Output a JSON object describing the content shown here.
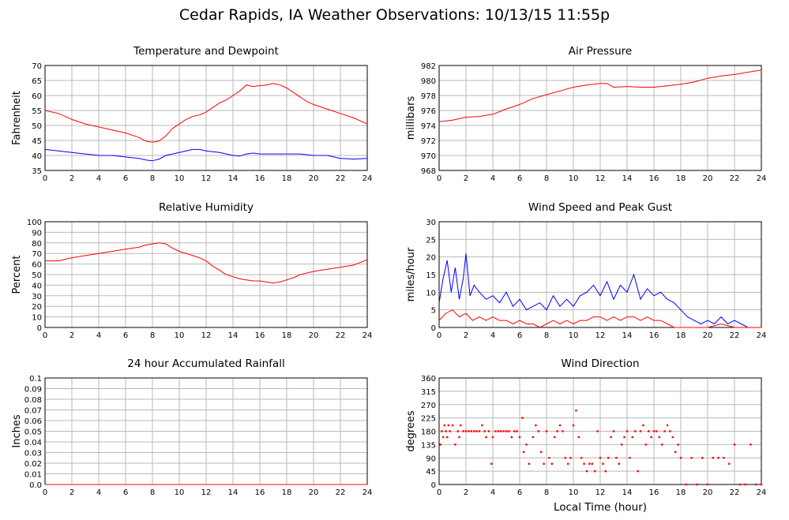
{
  "page": {
    "title": "Cedar Rapids, IA Weather Observations: 10/13/15 11:55p"
  },
  "chart_data": [
    {
      "id": "temp",
      "type": "line",
      "title": "Temperature and Dewpoint",
      "ylabel": "Fahrenheit",
      "xlabel": "",
      "xlim": [
        0,
        24
      ],
      "xticks": [
        0,
        2,
        4,
        6,
        8,
        10,
        12,
        14,
        16,
        18,
        20,
        22,
        24
      ],
      "ylim": [
        35,
        70
      ],
      "yticks": [
        35,
        40,
        45,
        50,
        55,
        60,
        65,
        70
      ],
      "grid": true,
      "series": [
        {
          "color": "#ff0000",
          "x": [
            0,
            1,
            2,
            3,
            4,
            5,
            6,
            7,
            7.5,
            8,
            8.5,
            9,
            9.5,
            10,
            10.5,
            11,
            11.5,
            12,
            12.5,
            13,
            13.5,
            14,
            14.5,
            15,
            15.5,
            16,
            16.5,
            17,
            17.5,
            18,
            18.5,
            19,
            19.5,
            20,
            21,
            22,
            23,
            24
          ],
          "y": [
            55,
            54,
            52,
            50.5,
            49.5,
            48.5,
            47.5,
            46,
            44.8,
            44.4,
            44.8,
            46.5,
            49,
            50.5,
            52,
            53,
            53.5,
            54.5,
            56,
            57.5,
            58.5,
            60,
            61.5,
            63.5,
            63,
            63.3,
            63.5,
            64,
            63.5,
            62.5,
            61,
            59.5,
            58,
            57,
            55.5,
            54,
            52.5,
            50.5
          ]
        },
        {
          "color": "#0000ff",
          "x": [
            0,
            1,
            2,
            3,
            4,
            5,
            6,
            7,
            7.5,
            8,
            8.5,
            9,
            10,
            10.5,
            11,
            11.5,
            12,
            13,
            13.5,
            14,
            14.5,
            15,
            15.5,
            16,
            17,
            18,
            19,
            20,
            21,
            21.5,
            22,
            23,
            24
          ],
          "y": [
            42,
            41.5,
            41,
            40.5,
            40,
            40,
            39.5,
            39,
            38.5,
            38.2,
            38.8,
            40,
            41,
            41.5,
            42,
            42,
            41.5,
            41,
            40.5,
            40,
            39.8,
            40.5,
            40.8,
            40.5,
            40.5,
            40.5,
            40.5,
            40,
            40,
            39.5,
            39,
            38.8,
            39
          ]
        }
      ]
    },
    {
      "id": "pressure",
      "type": "line",
      "title": "Air Pressure",
      "ylabel": "millibars",
      "xlabel": "",
      "xlim": [
        0,
        24
      ],
      "xticks": [
        0,
        2,
        4,
        6,
        8,
        10,
        12,
        14,
        16,
        18,
        20,
        22,
        24
      ],
      "ylim": [
        968,
        982
      ],
      "yticks": [
        968,
        970,
        972,
        974,
        976,
        978,
        980,
        982
      ],
      "grid": true,
      "series": [
        {
          "color": "#ff0000",
          "x": [
            0,
            1,
            2,
            3,
            4,
            5,
            6,
            7,
            8,
            9,
            10,
            11,
            12,
            12.5,
            13,
            14,
            15,
            16,
            17,
            18,
            19,
            20,
            21,
            22,
            23,
            24
          ],
          "y": [
            974.5,
            974.7,
            975.1,
            975.2,
            975.5,
            976.2,
            976.8,
            977.6,
            978.1,
            978.6,
            979.1,
            979.4,
            979.6,
            979.6,
            979.1,
            979.2,
            979.1,
            979.1,
            979.3,
            979.5,
            979.8,
            980.3,
            980.6,
            980.8,
            981.1,
            981.4
          ]
        }
      ]
    },
    {
      "id": "humidity",
      "type": "line",
      "title": "Relative Humidity",
      "ylabel": "Percent",
      "xlabel": "",
      "xlim": [
        0,
        24
      ],
      "xticks": [
        0,
        2,
        4,
        6,
        8,
        10,
        12,
        14,
        16,
        18,
        20,
        22,
        24
      ],
      "ylim": [
        0,
        100
      ],
      "yticks": [
        0,
        10,
        20,
        30,
        40,
        50,
        60,
        70,
        80,
        90,
        100
      ],
      "grid": true,
      "series": [
        {
          "color": "#ff0000",
          "x": [
            0,
            1,
            2,
            3,
            4,
            5,
            6,
            7,
            7.5,
            8,
            8.5,
            9,
            9.5,
            10,
            10.5,
            11,
            11.5,
            12,
            12.5,
            13,
            13.5,
            14,
            14.5,
            15,
            15.5,
            16,
            16.5,
            17,
            17.5,
            18,
            18.5,
            19,
            20,
            21,
            22,
            23,
            24
          ],
          "y": [
            63,
            63,
            66,
            68,
            70,
            72,
            74,
            76,
            78,
            79,
            80,
            79,
            75,
            72,
            70,
            68,
            66,
            63,
            58,
            54,
            50,
            48,
            46,
            45,
            44,
            44,
            43,
            42,
            43,
            45,
            47,
            50,
            53,
            55,
            57,
            59,
            64
          ]
        }
      ]
    },
    {
      "id": "wind",
      "type": "line",
      "title": "Wind Speed and Peak Gust",
      "ylabel": "miles/hour",
      "xlabel": "",
      "xlim": [
        0,
        24
      ],
      "xticks": [
        0,
        2,
        4,
        6,
        8,
        10,
        12,
        14,
        16,
        18,
        20,
        22,
        24
      ],
      "ylim": [
        0,
        30
      ],
      "yticks": [
        0,
        5,
        10,
        15,
        20,
        25,
        30
      ],
      "grid": true,
      "series": [
        {
          "color": "#0000ff",
          "x": [
            0,
            0.3,
            0.6,
            0.9,
            1.2,
            1.5,
            1.8,
            2.0,
            2.3,
            2.6,
            3,
            3.5,
            4,
            4.5,
            5,
            5.5,
            6,
            6.5,
            7,
            7.5,
            8,
            8.5,
            9,
            9.5,
            10,
            10.5,
            11,
            11.5,
            12,
            12.5,
            13,
            13.5,
            14,
            14.5,
            15,
            15.5,
            16,
            16.5,
            17,
            17.5,
            18,
            18.5,
            19,
            19.5,
            20,
            20.5,
            21,
            21.5,
            22,
            22.5,
            23,
            23.5,
            24
          ],
          "y": [
            7,
            14,
            19,
            10,
            17,
            8,
            14,
            21,
            9,
            12,
            10,
            8,
            9,
            7,
            10,
            6,
            8,
            5,
            6,
            7,
            5,
            9,
            6,
            8,
            6,
            9,
            10,
            12,
            9,
            13,
            8,
            12,
            10,
            15,
            8,
            11,
            9,
            10,
            8,
            7,
            5,
            3,
            2,
            1,
            2,
            1,
            3,
            1,
            2,
            1,
            0,
            0,
            0
          ]
        },
        {
          "color": "#ff0000",
          "x": [
            0,
            0.5,
            1,
            1.5,
            2,
            2.5,
            3,
            3.5,
            4,
            4.5,
            5,
            5.5,
            6,
            6.5,
            7,
            7.5,
            8,
            8.5,
            9,
            9.5,
            10,
            10.5,
            11,
            11.5,
            12,
            12.5,
            13,
            13.5,
            14,
            14.5,
            15,
            15.5,
            16,
            16.5,
            17,
            17.5,
            18,
            19,
            20,
            21,
            22,
            23,
            24
          ],
          "y": [
            2,
            4,
            5,
            3,
            4,
            2,
            3,
            2,
            3,
            2,
            2,
            1,
            2,
            1,
            1,
            0,
            1,
            2,
            1,
            2,
            1,
            2,
            2,
            3,
            3,
            2,
            3,
            2,
            3,
            3,
            2,
            3,
            2,
            2,
            1,
            0,
            0,
            0,
            0,
            1,
            0,
            0,
            0
          ]
        }
      ]
    },
    {
      "id": "rain",
      "type": "line",
      "title": "24 hour Accumulated Rainfall",
      "ylabel": "Inches",
      "xlabel": "",
      "xlim": [
        0,
        24
      ],
      "xticks": [
        0,
        2,
        4,
        6,
        8,
        10,
        12,
        14,
        16,
        18,
        20,
        22,
        24
      ],
      "ylim": [
        0,
        0.1
      ],
      "yticks": [
        "0.0",
        "0.01",
        "0.02",
        "0.03",
        "0.04",
        "0.05",
        "0.06",
        "0.07",
        "0.08",
        "0.09",
        "0.1"
      ],
      "grid": true,
      "series": [
        {
          "color": "#ff0000",
          "x": [
            0,
            24
          ],
          "y": [
            0,
            0
          ]
        }
      ]
    },
    {
      "id": "direction",
      "type": "scatter",
      "title": "Wind Direction",
      "ylabel": "degrees",
      "xlabel": "Local Time (hour)",
      "xlim": [
        0,
        24
      ],
      "xticks": [
        0,
        2,
        4,
        6,
        8,
        10,
        12,
        14,
        16,
        18,
        20,
        22,
        24
      ],
      "ylim": [
        0,
        360
      ],
      "yticks": [
        0,
        45,
        90,
        135,
        180,
        225,
        270,
        315,
        360
      ],
      "grid": true,
      "series": [
        {
          "color": "#ff0000",
          "x": [
            0.1,
            0.2,
            0.3,
            0.4,
            0.5,
            0.6,
            0.7,
            0.8,
            1.0,
            1.2,
            1.4,
            1.5,
            1.6,
            1.8,
            2.0,
            2.2,
            2.4,
            2.6,
            2.8,
            3.0,
            3.2,
            3.4,
            3.5,
            3.7,
            3.9,
            4.0,
            4.2,
            4.4,
            4.6,
            4.8,
            5.0,
            5.2,
            5.4,
            5.6,
            5.8,
            6.0,
            6.2,
            6.3,
            6.5,
            6.7,
            7.0,
            7.2,
            7.4,
            7.6,
            7.8,
            8.0,
            8.2,
            8.4,
            8.6,
            8.8,
            9.0,
            9.2,
            9.4,
            9.6,
            9.8,
            10.0,
            10.2,
            10.4,
            10.6,
            10.8,
            11.0,
            11.2,
            11.4,
            11.6,
            11.8,
            12.0,
            12.2,
            12.4,
            12.6,
            12.8,
            13.0,
            13.2,
            13.4,
            13.6,
            13.8,
            14.0,
            14.2,
            14.4,
            14.6,
            14.8,
            15.0,
            15.2,
            15.4,
            15.6,
            15.8,
            16.0,
            16.2,
            16.4,
            16.6,
            16.8,
            17.0,
            17.2,
            17.4,
            17.6,
            17.8,
            18.0,
            18.4,
            18.8,
            19.2,
            19.6,
            20.0,
            20.4,
            20.8,
            21.2,
            21.6,
            22.0,
            22.4,
            22.8,
            23.2,
            23.6,
            24.0
          ],
          "y": [
            135,
            180,
            160,
            200,
            180,
            160,
            200,
            180,
            200,
            135,
            180,
            160,
            200,
            180,
            180,
            180,
            180,
            180,
            180,
            180,
            200,
            180,
            160,
            180,
            70,
            160,
            180,
            180,
            180,
            180,
            180,
            180,
            160,
            180,
            180,
            160,
            225,
            110,
            135,
            70,
            160,
            200,
            180,
            110,
            70,
            180,
            90,
            70,
            160,
            180,
            200,
            180,
            90,
            70,
            90,
            200,
            250,
            160,
            90,
            70,
            45,
            70,
            70,
            45,
            180,
            90,
            70,
            45,
            90,
            160,
            180,
            90,
            70,
            135,
            160,
            180,
            90,
            160,
            180,
            45,
            180,
            200,
            135,
            180,
            160,
            180,
            180,
            160,
            135,
            180,
            200,
            180,
            160,
            110,
            135,
            90,
            0,
            90,
            0,
            90,
            0,
            90,
            90,
            90,
            70,
            135,
            0,
            0,
            135,
            0,
            0
          ]
        }
      ]
    }
  ]
}
